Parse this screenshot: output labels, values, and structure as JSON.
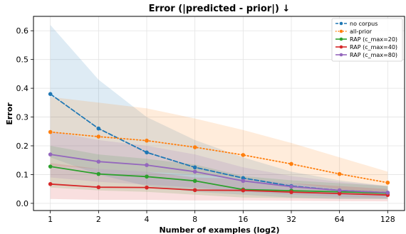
{
  "chart_data": {
    "type": "line",
    "title": "Error (|predicted - prior|) ↓",
    "xlabel": "Number of examples (log2)",
    "ylabel": "Error",
    "x_scale": "log2",
    "categories": [
      "1",
      "2",
      "4",
      "8",
      "16",
      "32",
      "64",
      "128"
    ],
    "x": [
      1,
      2,
      4,
      8,
      16,
      32,
      64,
      128
    ],
    "ylim": [
      -0.025,
      0.65
    ],
    "yticks": [
      "0.0",
      "0.1",
      "0.2",
      "0.3",
      "0.4",
      "0.5",
      "0.6"
    ],
    "ytick_values": [
      0,
      0.1,
      0.2,
      0.3,
      0.4,
      0.5,
      0.6
    ],
    "grid": true,
    "legend_position": "top-right",
    "series": [
      {
        "name": "no corpus",
        "color": "#1f77b4",
        "linestyle": "dashed",
        "marker": "circle",
        "values": [
          0.38,
          0.26,
          0.177,
          0.125,
          0.088,
          0.06,
          0.045,
          0.037
        ],
        "band_upper": [
          0.62,
          0.43,
          0.3,
          0.22,
          0.16,
          0.11,
          0.08,
          0.06
        ],
        "band_lower": [
          0.16,
          0.1,
          0.06,
          0.04,
          0.03,
          0.02,
          0.015,
          0.015
        ]
      },
      {
        "name": "all-prior",
        "color": "#ff7f0e",
        "linestyle": "dotted",
        "marker": "circle",
        "values": [
          0.248,
          0.232,
          0.218,
          0.195,
          0.168,
          0.137,
          0.102,
          0.072
        ],
        "band_upper": [
          0.37,
          0.35,
          0.33,
          0.295,
          0.255,
          0.21,
          0.16,
          0.11
        ],
        "band_lower": [
          0.13,
          0.12,
          0.11,
          0.1,
          0.085,
          0.07,
          0.05,
          0.035
        ]
      },
      {
        "name": "RAP (c_max=20)",
        "color": "#2ca02c",
        "linestyle": "solid",
        "marker": "circle",
        "values": [
          0.128,
          0.102,
          0.093,
          0.078,
          0.048,
          0.044,
          0.04,
          0.035
        ],
        "band_upper": [
          0.2,
          0.17,
          0.155,
          0.135,
          0.095,
          0.08,
          0.07,
          0.06
        ],
        "band_lower": [
          0.055,
          0.045,
          0.04,
          0.03,
          0.02,
          0.018,
          0.016,
          0.015
        ]
      },
      {
        "name": "RAP (c_max=40)",
        "color": "#d62728",
        "linestyle": "solid",
        "marker": "circle",
        "values": [
          0.067,
          0.056,
          0.055,
          0.046,
          0.045,
          0.039,
          0.034,
          0.029
        ],
        "band_upper": [
          0.14,
          0.12,
          0.11,
          0.09,
          0.085,
          0.07,
          0.06,
          0.05
        ],
        "band_lower": [
          0.015,
          0.012,
          0.012,
          0.01,
          0.01,
          0.009,
          0.008,
          0.007
        ]
      },
      {
        "name": "RAP (c_max=80)",
        "color": "#9467bd",
        "linestyle": "solid",
        "marker": "circle",
        "values": [
          0.17,
          0.145,
          0.133,
          0.11,
          0.078,
          0.058,
          0.045,
          0.037
        ],
        "band_upper": [
          0.25,
          0.22,
          0.2,
          0.17,
          0.125,
          0.095,
          0.075,
          0.06
        ],
        "band_lower": [
          0.09,
          0.075,
          0.065,
          0.055,
          0.04,
          0.03,
          0.022,
          0.018
        ]
      }
    ]
  }
}
